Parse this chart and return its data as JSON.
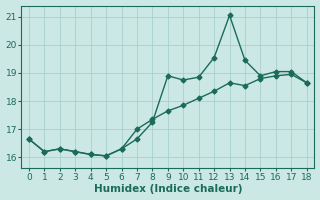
{
  "xlabel": "Humidex (Indice chaleur)",
  "xlim": [
    -0.5,
    18.5
  ],
  "ylim": [
    15.6,
    21.4
  ],
  "xticks": [
    0,
    1,
    2,
    3,
    4,
    5,
    6,
    7,
    8,
    9,
    10,
    11,
    12,
    13,
    14,
    15,
    16,
    17,
    18
  ],
  "yticks": [
    16,
    17,
    18,
    19,
    20,
    21
  ],
  "bg_color": "#cce8e4",
  "grid_color": "#aad0ca",
  "line_color": "#1a6b5a",
  "series1_x": [
    0,
    1,
    2,
    3,
    4,
    5,
    6,
    7,
    8,
    9,
    10,
    11,
    12,
    13,
    14,
    15,
    16,
    17,
    18
  ],
  "series1_y": [
    16.65,
    16.2,
    16.3,
    16.2,
    16.1,
    16.05,
    16.3,
    16.65,
    17.25,
    18.9,
    18.75,
    18.85,
    19.55,
    21.05,
    19.45,
    18.9,
    19.05,
    19.05,
    18.65
  ],
  "series2_x": [
    0,
    1,
    2,
    3,
    4,
    5,
    6,
    7,
    8,
    9,
    10,
    11,
    12,
    13,
    14,
    15,
    16,
    17,
    18
  ],
  "series2_y": [
    16.65,
    16.2,
    16.3,
    16.2,
    16.1,
    16.05,
    16.3,
    17.0,
    17.35,
    17.65,
    17.85,
    18.1,
    18.35,
    18.65,
    18.55,
    18.8,
    18.9,
    18.95,
    18.65
  ],
  "marker_size": 2.5,
  "line_width": 1.0,
  "tick_fontsize": 6.5,
  "label_fontsize": 7.5
}
